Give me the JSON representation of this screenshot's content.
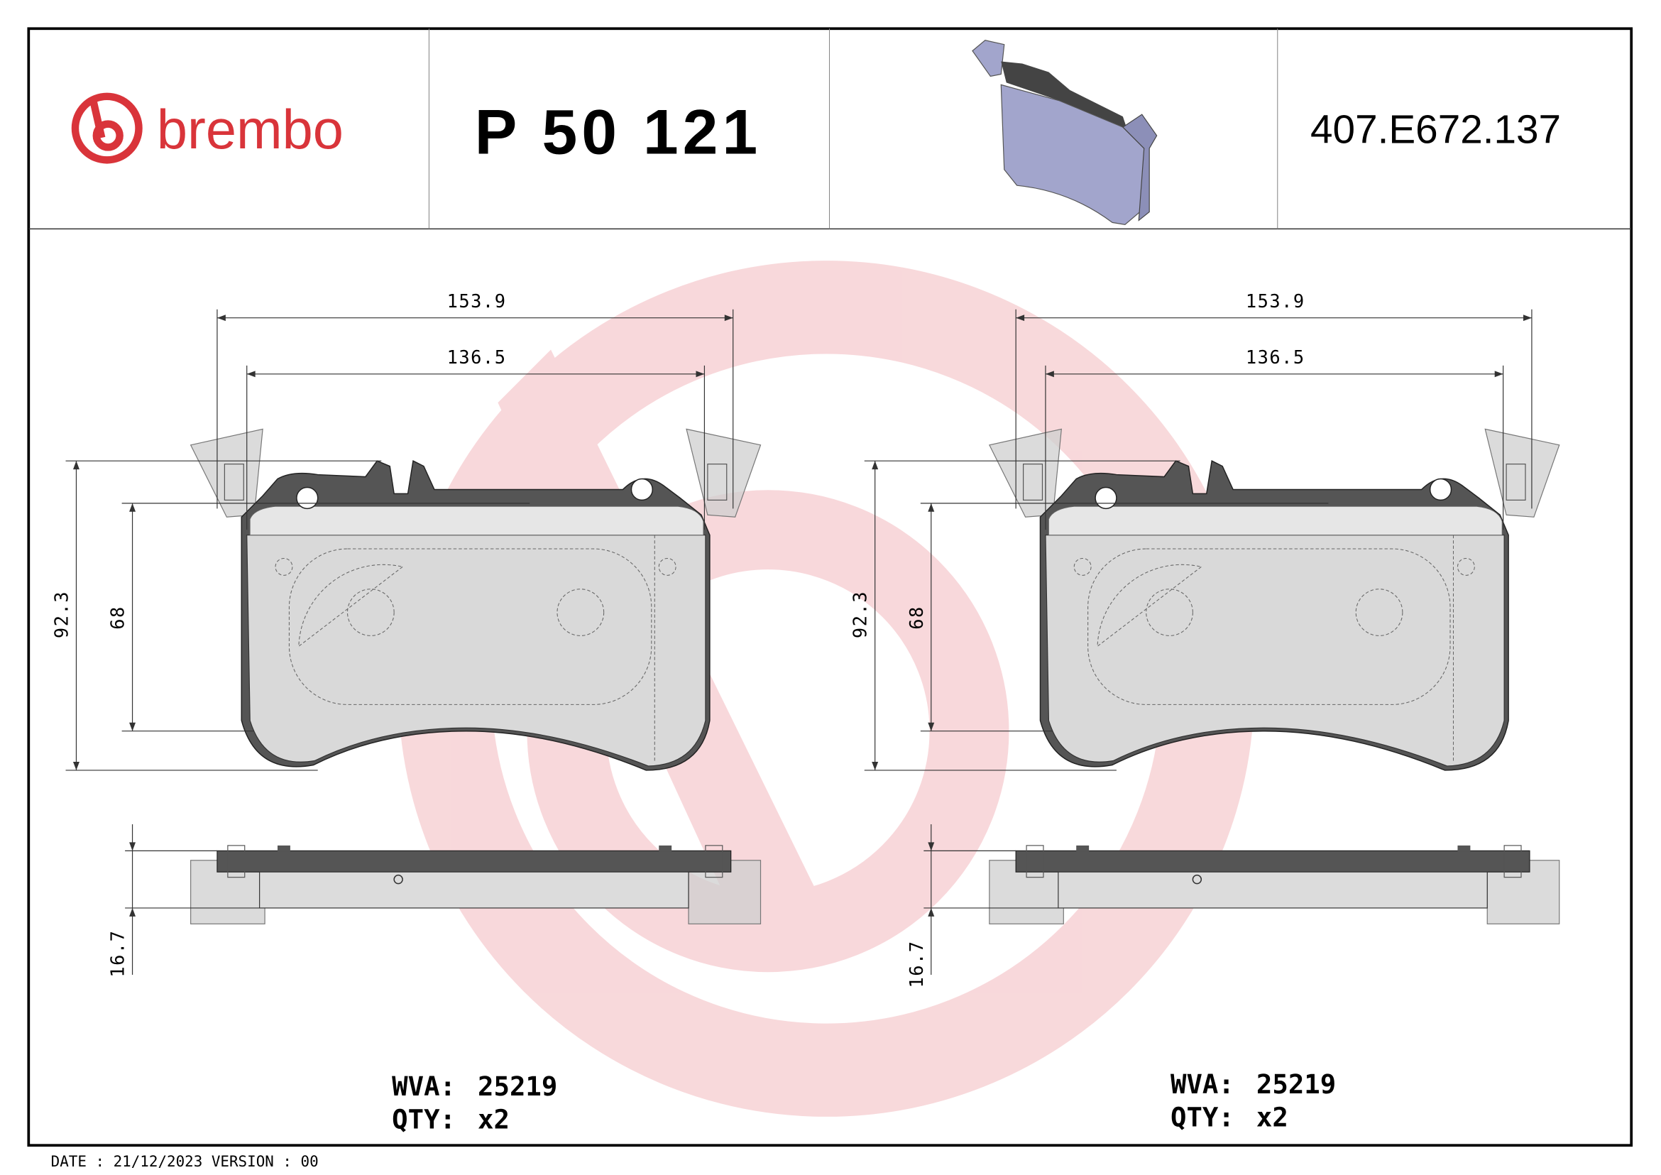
{
  "header": {
    "brand": "brembo",
    "part_number": "P 50 121",
    "reference": "407.E672.137"
  },
  "views": [
    {
      "width_outer": "153.9",
      "width_inner": "136.5",
      "height_outer": "92.3",
      "height_inner": "68",
      "thickness": "16.7",
      "wva_label": "WVA:",
      "wva_value": "25219",
      "qty_label": "QTY:",
      "qty_value": "x2"
    },
    {
      "width_outer": "153.9",
      "width_inner": "136.5",
      "height_outer": "92.3",
      "height_inner": "68",
      "thickness": "16.7",
      "wva_label": "WVA:",
      "wva_value": "25219",
      "qty_label": "QTY:",
      "qty_value": "x2"
    }
  ],
  "footer": {
    "date": "DATE : 21/12/2023 VERSION : 00"
  },
  "colors": {
    "brand_red": "#d9343a",
    "watermark": "#f7d9dc",
    "pad_3d": "#a2a5cc",
    "backplate": "#555555",
    "friction": "#d9d9d9"
  }
}
